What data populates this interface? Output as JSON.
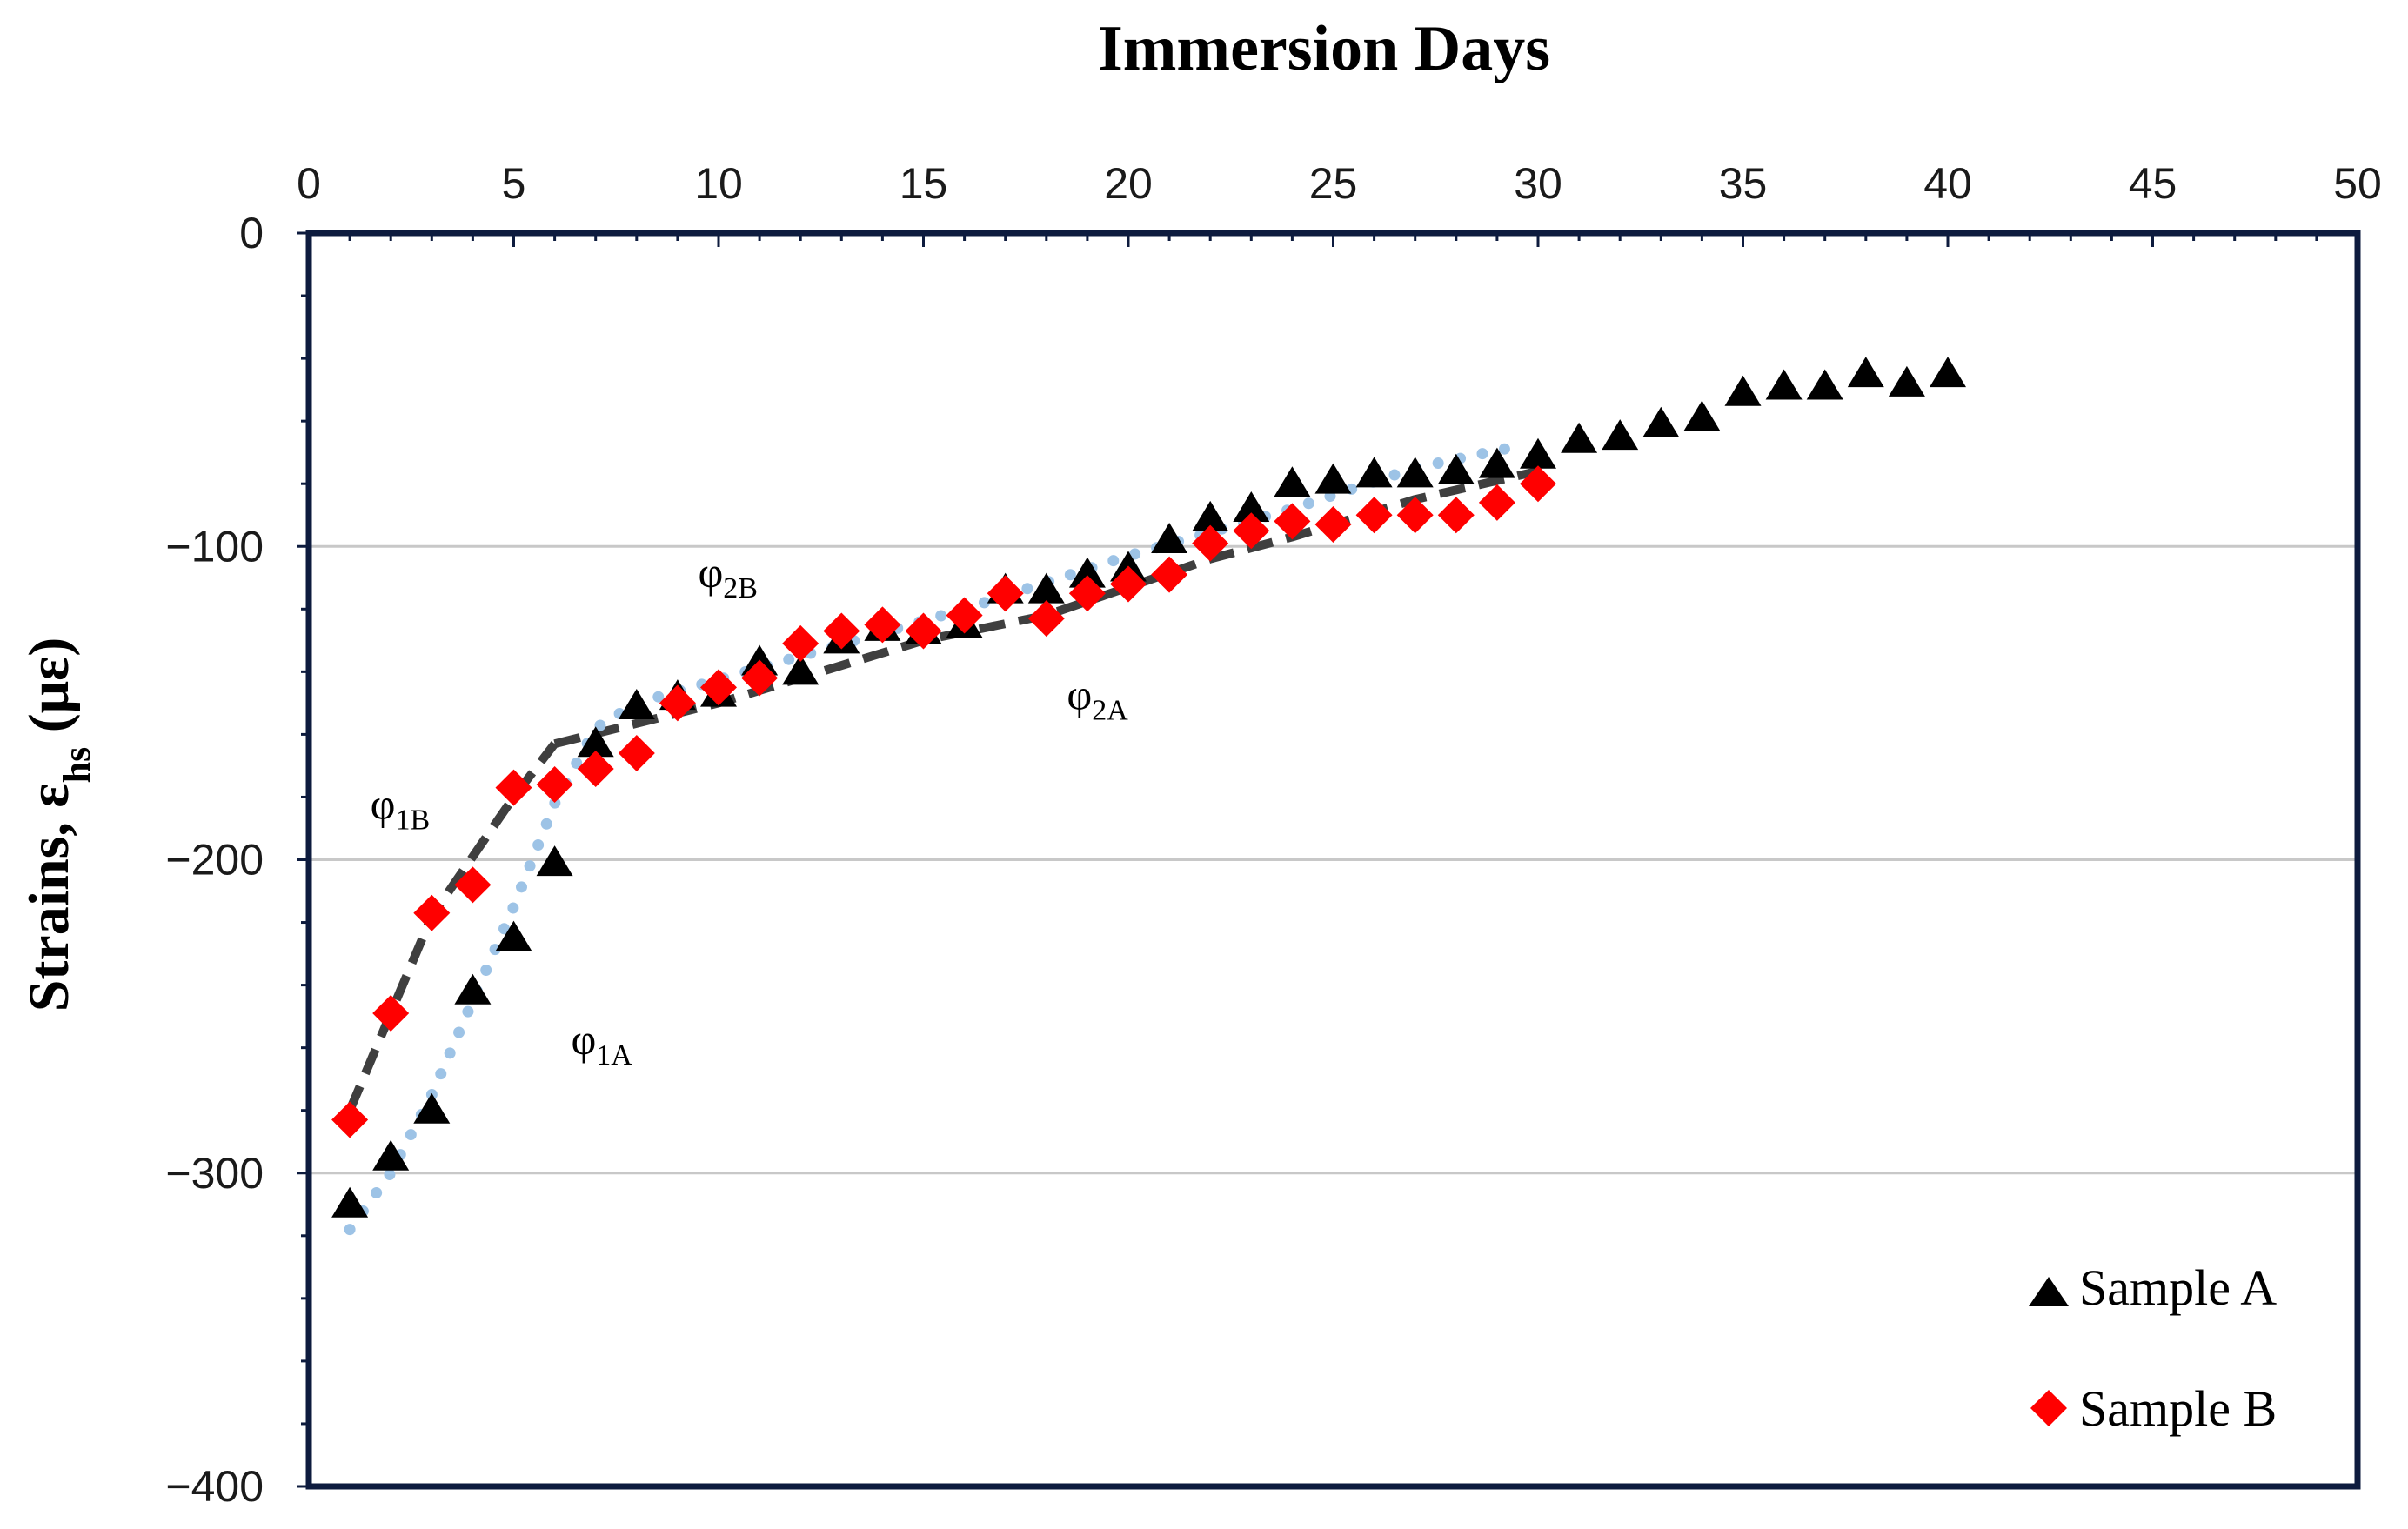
{
  "chart_data": {
    "type": "scatter",
    "title": "",
    "xlabel": "Immersion Days",
    "ylabel": {
      "main": "Strains, ε",
      "sub": "hs",
      "suffix": " (με)"
    },
    "xlim": [
      0,
      50
    ],
    "ylim": [
      -400,
      0
    ],
    "xticks": [
      0,
      5,
      10,
      15,
      20,
      25,
      30,
      35,
      40,
      45,
      50
    ],
    "yticks": [
      0,
      -100,
      -200,
      -300,
      -400
    ],
    "ytick_labels": [
      "0",
      "−100",
      "−200",
      "−300",
      "−400"
    ],
    "x_axis_position": "top",
    "grid": "horizontal",
    "legend_position": "bottom-right",
    "series": [
      {
        "name": "Sample A",
        "marker": "triangle",
        "color": "#000000",
        "x": [
          1,
          2,
          3,
          4,
          5,
          6,
          7,
          8,
          9,
          10,
          11,
          12,
          13,
          14,
          15,
          16,
          17,
          18,
          19,
          20,
          21,
          22,
          23,
          24,
          25,
          26,
          27,
          28,
          29,
          30,
          31,
          32,
          33,
          34,
          35,
          36,
          37,
          38,
          39,
          40
        ],
        "y": [
          -310,
          -295,
          -280,
          -242,
          -225,
          -201,
          -163,
          -151,
          -148,
          -147,
          -137,
          -140,
          -130,
          -126,
          -127,
          -125,
          -114,
          -114,
          -109,
          -107,
          -98,
          -91,
          -88,
          -80,
          -79,
          -77,
          -77,
          -76,
          -74,
          -71,
          -66,
          -65,
          -61,
          -59,
          -51,
          -49,
          -49,
          -45,
          -48,
          -45
        ]
      },
      {
        "name": "Sample B",
        "marker": "diamond",
        "color": "#ff0000",
        "x": [
          1,
          2,
          3,
          4,
          5,
          6,
          7,
          8,
          9,
          10,
          11,
          12,
          13,
          14,
          15,
          16,
          17,
          18,
          19,
          20,
          21,
          22,
          23,
          24,
          25,
          26,
          27,
          28,
          29,
          30
        ],
        "y": [
          -283,
          -249,
          -217,
          -208,
          -177,
          -176,
          -171,
          -166,
          -150,
          -145,
          -142,
          -131,
          -127,
          -125,
          -127,
          -122,
          -115,
          -123,
          -115,
          -112,
          -109,
          -99,
          -95,
          -92,
          -93,
          -90,
          -90,
          -90,
          -86,
          -80
        ]
      }
    ],
    "fit_lines": [
      {
        "name": "φ1B fit",
        "style": "dashed",
        "color": "#3f3f3f",
        "x": [
          1,
          3,
          5,
          6
        ],
        "y": [
          -280,
          -218,
          -180,
          -163
        ]
      },
      {
        "name": "φ2B fit",
        "style": "dashed",
        "color": "#3f3f3f",
        "x": [
          6,
          10,
          15,
          18,
          22,
          24,
          27,
          30
        ],
        "y": [
          -163,
          -150,
          -130,
          -122,
          -104,
          -97,
          -85,
          -76
        ]
      },
      {
        "name": "φ1A fit",
        "style": "dotted",
        "color": "#9dc3e6",
        "x": [
          1,
          2,
          3,
          4,
          5,
          6,
          7,
          8
        ],
        "y": [
          -318,
          -300,
          -275,
          -245,
          -215,
          -182,
          -158,
          -150
        ]
      },
      {
        "name": "φ2A fit",
        "style": "dotted",
        "color": "#9dc3e6",
        "x": [
          8,
          12,
          16,
          20,
          24,
          27,
          29.5
        ],
        "y": [
          -150,
          -135,
          -120,
          -103,
          -88,
          -75,
          -68
        ]
      }
    ],
    "annotations": [
      {
        "main": "φ",
        "sub": "2B",
        "x": 9.5,
        "y": -113
      },
      {
        "main": "φ",
        "sub": "2A",
        "x": 18.5,
        "y": -152
      },
      {
        "main": "φ",
        "sub": "1B",
        "x": 1.5,
        "y": -187
      },
      {
        "main": "φ",
        "sub": "1A",
        "x": 6.4,
        "y": -262
      }
    ]
  }
}
